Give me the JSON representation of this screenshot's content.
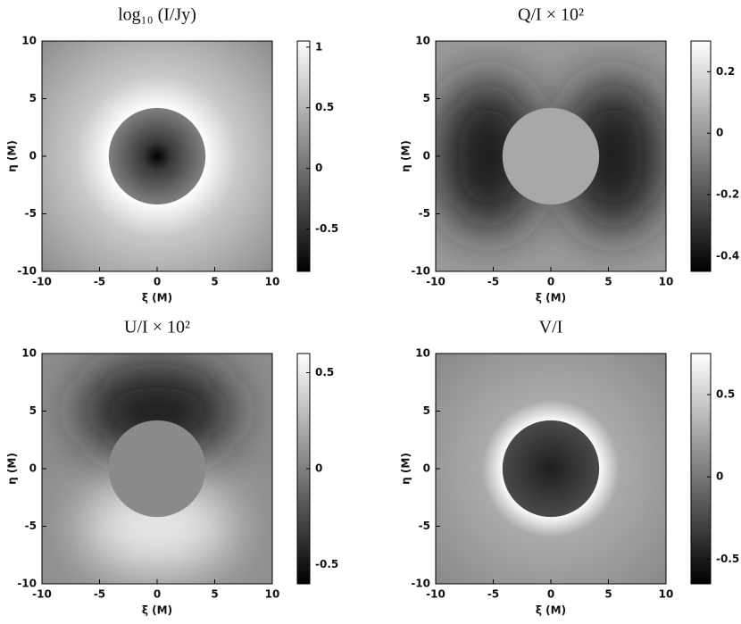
{
  "chart_data": [
    {
      "type": "heatmap",
      "title": "log₁₀ (I/Jy)",
      "xlabel": "ξ (M)",
      "ylabel": "η (M)",
      "xlim": [
        -10,
        10
      ],
      "ylim": [
        -10,
        10
      ],
      "xticks": [
        -10,
        -5,
        0,
        5,
        10
      ],
      "yticks": [
        -10,
        -5,
        0,
        5,
        10
      ],
      "clim": [
        -0.85,
        1.05
      ],
      "cticks": [
        -0.5,
        0,
        0.5,
        1
      ],
      "colormap": "gray"
    },
    {
      "type": "heatmap",
      "title": "Q/I × 10²",
      "xlabel": "ξ (M)",
      "ylabel": "η (M)",
      "xlim": [
        -10,
        10
      ],
      "ylim": [
        -10,
        10
      ],
      "xticks": [
        -10,
        -5,
        0,
        5,
        10
      ],
      "yticks": [
        -10,
        -5,
        0,
        5,
        10
      ],
      "clim": [
        -0.45,
        0.3
      ],
      "cticks": [
        -0.4,
        -0.2,
        0,
        0.2
      ],
      "colormap": "gray"
    },
    {
      "type": "heatmap",
      "title": "U/I × 10²",
      "xlabel": "ξ (M)",
      "ylabel": "η (M)",
      "xlim": [
        -10,
        10
      ],
      "ylim": [
        -10,
        10
      ],
      "xticks": [
        -10,
        -5,
        0,
        5,
        10
      ],
      "yticks": [
        -10,
        -5,
        0,
        5,
        10
      ],
      "clim": [
        -0.6,
        0.6
      ],
      "cticks": [
        -0.5,
        0,
        0.5
      ],
      "colormap": "gray"
    },
    {
      "type": "heatmap",
      "title": "V/I",
      "xlabel": "ξ (M)",
      "ylabel": "η (M)",
      "xlim": [
        -10,
        10
      ],
      "ylim": [
        -10,
        10
      ],
      "xticks": [
        -10,
        -5,
        0,
        5,
        10
      ],
      "yticks": [
        -10,
        -5,
        0,
        5,
        10
      ],
      "clim": [
        -0.65,
        0.75
      ],
      "cticks": [
        -0.5,
        0,
        0.5
      ],
      "colormap": "gray"
    }
  ]
}
